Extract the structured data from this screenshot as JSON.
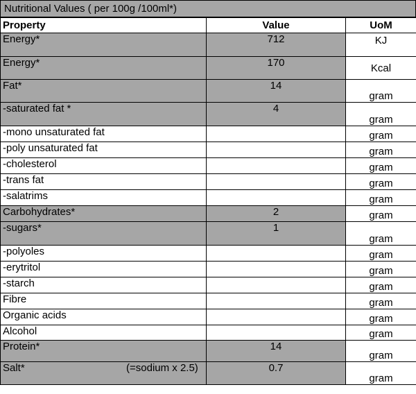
{
  "title": "Nutritional Values ( per 100g /100ml*)",
  "headers": {
    "property": "Property",
    "value": "Value",
    "uom": "UoM"
  },
  "rows": [
    {
      "label": "Energy*",
      "value": "712",
      "uom": "KJ"
    },
    {
      "label": "Energy*",
      "value": "170",
      "uom": "Kcal"
    },
    {
      "label": "Fat*",
      "value": "14",
      "uom": "gram"
    },
    {
      "label": "-saturated fat *",
      "value": "4",
      "uom": "gram"
    },
    {
      "label": "-mono unsaturated fat",
      "value": "",
      "uom": "gram"
    },
    {
      "label": "-poly unsaturated fat",
      "value": "",
      "uom": "gram"
    },
    {
      "label": "-cholesterol",
      "value": "",
      "uom": "gram"
    },
    {
      "label": "-trans fat",
      "value": "",
      "uom": "gram"
    },
    {
      "label": "-salatrims",
      "value": "",
      "uom": "gram"
    },
    {
      "label": "Carbohydrates*",
      "value": "2",
      "uom": "gram"
    },
    {
      "label": "-sugars*",
      "value": "1",
      "uom": "gram"
    },
    {
      "label": "-polyoles",
      "value": "",
      "uom": "gram"
    },
    {
      "label": "-erytritol",
      "value": "",
      "uom": "gram"
    },
    {
      "label": "-starch",
      "value": "",
      "uom": "gram"
    },
    {
      "label": "Fibre",
      "value": "",
      "uom": "gram"
    },
    {
      "label": "Organic acids",
      "value": "",
      "uom": "gram"
    },
    {
      "label": "Alcohol",
      "value": "",
      "uom": "gram"
    },
    {
      "label": "Protein*",
      "value": "14",
      "uom": "gram"
    },
    {
      "label": "Salt*",
      "note": "(=sodium x 2.5)",
      "value": "0.7",
      "uom": "gram"
    }
  ],
  "colors": {
    "shaded": "#a6a6a6",
    "border": "#000000"
  }
}
